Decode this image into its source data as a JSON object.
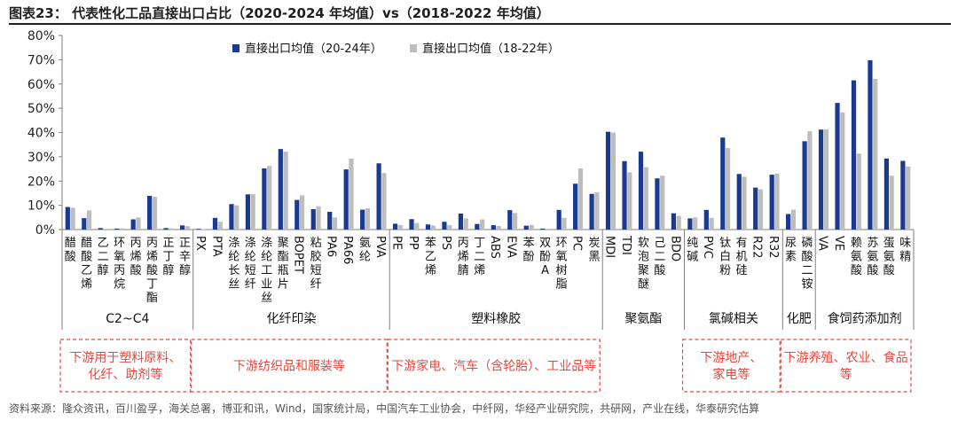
{
  "figure": {
    "title": "图表23：  代表性化工品直接出口占比（2020-2024 年均值）vs（2018-2022 年均值）",
    "source": "资料来源：隆众资讯，百川盈孚，海关总署，博亚和讯，Wind，国家统计局，中国汽车工业协会，中纤网，华经产业研究院，共研网，产业在线，华泰研究估算"
  },
  "colors": {
    "series_primary": "#1a3a8f",
    "series_secondary": "#bdbdbd",
    "note_border": "#e8463c",
    "note_text": "#e8463c",
    "axis": "#7f7f7f"
  },
  "chart_data": {
    "type": "bar",
    "ylim": [
      0,
      80
    ],
    "yticks": [
      0,
      10,
      20,
      30,
      40,
      50,
      60,
      70,
      80
    ],
    "ytick_labels": [
      "0%",
      "10%",
      "20%",
      "30%",
      "40%",
      "50%",
      "60%",
      "70%",
      "80%"
    ],
    "legend_position": "top-center",
    "categories": [
      "醋酸",
      "醋酸乙烯",
      "乙二醇",
      "环氧丙烷",
      "丙烯酸",
      "丙烯酸丁酯",
      "正丁醇",
      "正辛醇",
      "PX",
      "PTA",
      "涤纶长丝",
      "涤纶短纤",
      "涤纶工业丝",
      "聚酯瓶片",
      "BOPET",
      "粘胶短纤",
      "PA6",
      "PA66",
      "氨纶",
      "PVA",
      "PE",
      "PP",
      "苯乙烯",
      "PS",
      "丙烯腈",
      "丁二烯",
      "ABS",
      "EVA",
      "苯酚",
      "双酚A",
      "环氧树脂",
      "PC",
      "炭黑",
      "MDI",
      "TDI",
      "软泡聚醚",
      "己二酸",
      "BDO",
      "纯碱",
      "PVC",
      "钛白粉",
      "有机硅",
      "R22",
      "R32",
      "尿素",
      "磷酸二铵",
      "VA",
      "VE",
      "赖氨酸",
      "苏氨酸",
      "蛋氨酸",
      "味精"
    ],
    "series": [
      {
        "name": "直接出口均值（20-24年）",
        "values": [
          9.3,
          4.7,
          0.6,
          0.4,
          4.2,
          13.9,
          0.6,
          1.7,
          0.3,
          4.8,
          10.5,
          14.5,
          25.2,
          33.2,
          12.2,
          8.4,
          7.3,
          24.8,
          8.2,
          27.3,
          2.4,
          4.3,
          2.1,
          3.2,
          6.6,
          2.3,
          1.8,
          8.0,
          1.6,
          0.4,
          8.1,
          18.9,
          14.7,
          40.3,
          28.2,
          32.1,
          21.1,
          6.7,
          4.6,
          8.1,
          37.9,
          22.9,
          17.3,
          22.6,
          6.4,
          36.4,
          41.2,
          52.2,
          61.5,
          69.8,
          29.3,
          28.3
        ]
      },
      {
        "name": "直接出口均值（18-22年）",
        "values": [
          9.0,
          7.9,
          0.3,
          0.5,
          5.0,
          13.5,
          0.5,
          1.4,
          0.2,
          3.2,
          10.0,
          14.6,
          26.2,
          32.1,
          14.1,
          9.6,
          5.0,
          29.2,
          8.8,
          23.3,
          1.9,
          2.7,
          1.7,
          1.8,
          4.6,
          4.2,
          1.5,
          6.8,
          1.9,
          0.3,
          4.8,
          25.2,
          15.4,
          40.0,
          23.6,
          25.7,
          22.2,
          5.6,
          5.0,
          4.8,
          33.6,
          21.8,
          16.6,
          23.0,
          8.2,
          40.5,
          41.3,
          48.3,
          31.3,
          62.1,
          22.2,
          26.0
        ]
      }
    ],
    "groups": [
      {
        "label": "C2~C4",
        "range": [
          0,
          7
        ]
      },
      {
        "label": "化纤印染",
        "range": [
          8,
          19
        ]
      },
      {
        "label": "塑料橡胶",
        "range": [
          20,
          32
        ]
      },
      {
        "label": "聚氨酯",
        "range": [
          33,
          37
        ]
      },
      {
        "label": "氯碱相关",
        "range": [
          38,
          43
        ]
      },
      {
        "label": "化肥",
        "range": [
          44,
          45
        ]
      },
      {
        "label": "食饲药添加剂",
        "range": [
          46,
          51
        ]
      }
    ]
  },
  "notes": [
    {
      "lines": [
        "下游用于塑料原料、",
        "化纤、助剂等"
      ],
      "range": [
        0,
        7
      ]
    },
    {
      "lines": [
        "下游纺织品和服装等"
      ],
      "range": [
        8,
        19
      ]
    },
    {
      "lines": [
        "下游家电、汽车（含轮胎）、工业品等"
      ],
      "range": [
        20,
        32
      ]
    },
    {
      "lines": [
        "下游地产、",
        "家电等"
      ],
      "range": [
        38,
        43
      ]
    },
    {
      "lines": [
        "下游养殖、农业、食品",
        "等"
      ],
      "range": [
        44,
        51
      ]
    }
  ]
}
